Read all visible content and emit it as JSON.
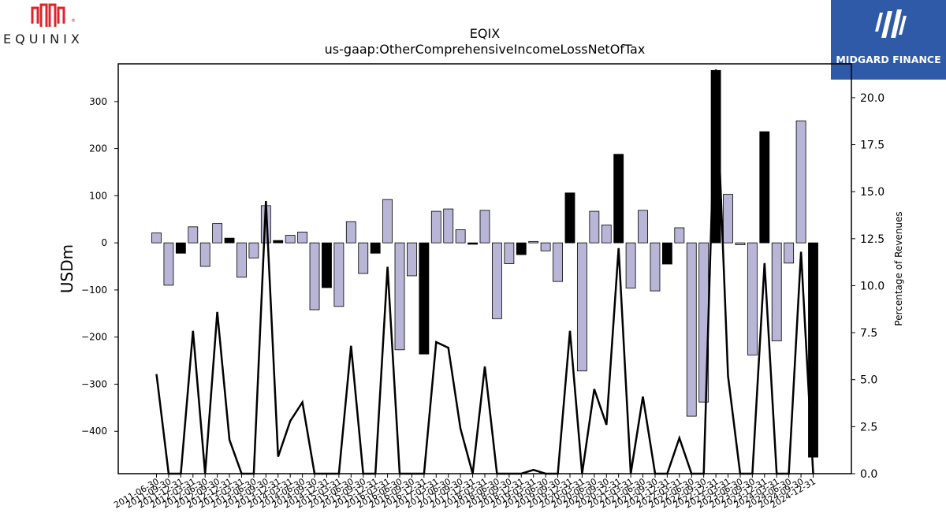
{
  "branding": {
    "company_word": "EQUINIX",
    "partner_word": "MIDGARD FINANCE",
    "company_color": "#e0232a",
    "partner_bg": "#2e5aa8"
  },
  "chart_data": {
    "type": "bar",
    "title": "EQIX",
    "subtitle": "us-gaap:OtherComprehensiveIncomeLossNetOfTax",
    "ylabel": "USDm",
    "y2label": "Percentage of Revenues",
    "ylim": [
      -490,
      380
    ],
    "y2lim": [
      0,
      21.8
    ],
    "yticks": [
      300,
      200,
      100,
      0,
      -100,
      -200,
      -300,
      -400
    ],
    "y2ticks": [
      0.0,
      2.5,
      5.0,
      7.5,
      10.0,
      12.5,
      15.0,
      17.5,
      20.0
    ],
    "grid": false,
    "bar_colors": {
      "quarterly": "#b9b5d6",
      "annual": "#000000"
    },
    "categories": [
      "2011-06-30",
      "2011-09-30",
      "2011-12-31",
      "2012-03-31",
      "2012-06-30",
      "2012-09-30",
      "2012-12-31",
      "2013-03-31",
      "2013-06-30",
      "2013-09-30",
      "2013-12-31",
      "2014-03-31",
      "2014-06-30",
      "2014-09-30",
      "2014-12-31",
      "2015-03-31",
      "2015-06-30",
      "2015-09-30",
      "2015-12-31",
      "2016-03-31",
      "2016-06-30",
      "2016-09-30",
      "2016-12-31",
      "2017-03-31",
      "2017-06-30",
      "2017-09-30",
      "2017-12-31",
      "2018-03-31",
      "2018-06-30",
      "2018-09-30",
      "2018-12-31",
      "2019-03-31",
      "2019-06-30",
      "2019-09-30",
      "2019-12-31",
      "2020-03-31",
      "2020-06-30",
      "2020-09-30",
      "2020-12-31",
      "2021-03-31",
      "2021-06-30",
      "2021-09-30",
      "2021-12-31",
      "2022-03-31",
      "2022-06-30",
      "2022-09-30",
      "2022-12-31",
      "2023-03-31",
      "2023-06-30",
      "2023-09-30",
      "2023-12-31",
      "2024-03-31",
      "2024-06-30",
      "2024-09-30",
      "2024-12-31"
    ],
    "values": [
      21,
      -90,
      -22,
      34,
      -50,
      41,
      10,
      -73,
      -32,
      79,
      5,
      16,
      23,
      -142,
      -95,
      -135,
      45,
      -65,
      -22,
      92,
      -227,
      -70,
      -236,
      67,
      72,
      28,
      -3,
      69,
      -161,
      -44,
      -25,
      3,
      -17,
      -82,
      106,
      -272,
      67,
      38,
      188,
      -96,
      69,
      -102,
      -45,
      32,
      -368,
      -338,
      366,
      103,
      -4,
      -238,
      236,
      -208,
      -43,
      259,
      -455
    ],
    "annual_flags": [
      false,
      false,
      true,
      false,
      false,
      false,
      true,
      false,
      false,
      false,
      true,
      false,
      false,
      false,
      true,
      false,
      false,
      false,
      true,
      false,
      false,
      false,
      true,
      false,
      false,
      false,
      true,
      false,
      false,
      false,
      true,
      false,
      false,
      false,
      true,
      false,
      false,
      false,
      true,
      false,
      false,
      false,
      true,
      false,
      false,
      false,
      true,
      false,
      false,
      false,
      true,
      false,
      false,
      false,
      true
    ],
    "series": [
      {
        "name": "",
        "type": "line",
        "color": "#000000",
        "values": [
          5.3,
          0,
          0,
          7.6,
          0,
          8.6,
          1.8,
          0,
          0,
          14.5,
          0.9,
          2.8,
          3.8,
          0,
          0,
          0,
          6.8,
          0,
          0,
          11.0,
          0,
          0,
          0,
          7.0,
          6.7,
          2.4,
          0,
          5.7,
          0,
          0,
          0,
          0.2,
          0,
          0,
          7.6,
          0,
          4.5,
          2.6,
          12.0,
          0,
          4.1,
          0,
          0,
          1.9,
          0,
          0,
          21.5,
          5.2,
          0,
          0,
          11.2,
          0,
          0,
          11.8,
          0
        ]
      }
    ]
  }
}
